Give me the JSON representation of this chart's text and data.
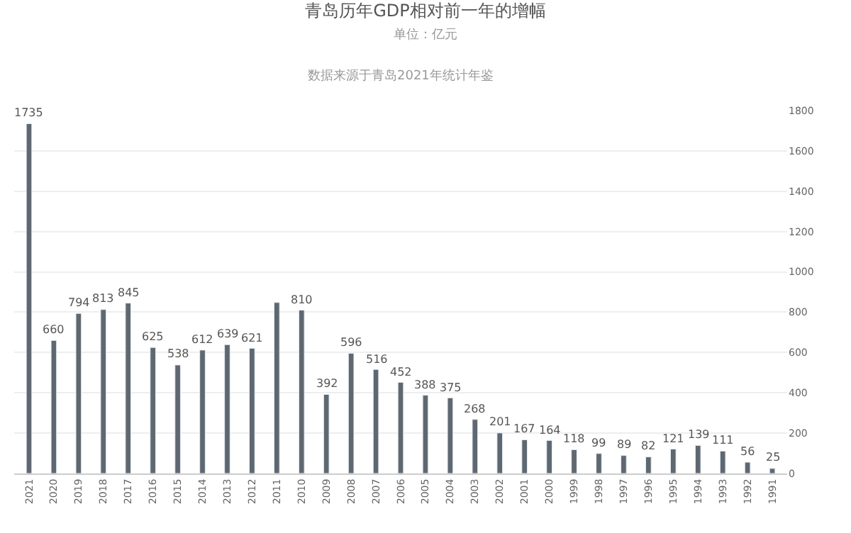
{
  "chart_data": {
    "type": "bar",
    "title": "青岛历年GDP相对前一年的增幅",
    "subtitle": "单位：亿元",
    "annotations": [
      "数据来源于青岛2021年统计年鉴"
    ],
    "categories": [
      "2021",
      "2020",
      "2019",
      "2018",
      "2017",
      "2016",
      "2015",
      "2014",
      "2013",
      "2012",
      "2011",
      "2010",
      "2009",
      "2008",
      "2007",
      "2006",
      "2005",
      "2004",
      "2003",
      "2002",
      "2001",
      "2000",
      "1999",
      "1998",
      "1997",
      "1996",
      "1995",
      "1994",
      "1993",
      "1992",
      "1991"
    ],
    "values": [
      1735,
      660,
      794,
      813,
      845,
      625,
      538,
      612,
      639,
      621,
      848,
      810,
      392,
      596,
      516,
      452,
      388,
      375,
      268,
      201,
      167,
      164,
      118,
      99,
      89,
      82,
      121,
      139,
      111,
      56,
      25
    ],
    "value_labels": [
      "1735",
      "660",
      "794",
      "813",
      "845",
      "625",
      "538",
      "612",
      "639",
      "621",
      null,
      "810",
      "392",
      "596",
      "516",
      "452",
      "388",
      "375",
      "268",
      "201",
      "167",
      "164",
      "118",
      "99",
      "89",
      "82",
      "121",
      "139",
      "111",
      "56",
      "25"
    ],
    "color": "#5f6870",
    "ylim": [
      0,
      1800
    ],
    "yticks": [
      0,
      200,
      400,
      600,
      800,
      1000,
      1200,
      1400,
      1600,
      1800
    ],
    "grid": "y",
    "legend": false
  }
}
